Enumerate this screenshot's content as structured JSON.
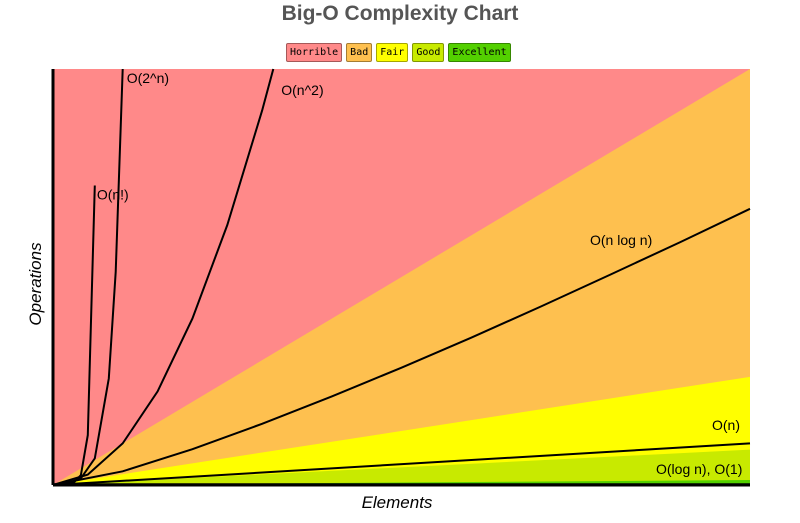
{
  "chart_data": {
    "type": "area",
    "title": "Big-O Complexity Chart",
    "xlabel": "Elements",
    "ylabel": "Operations",
    "legend_position": "top-center",
    "legend": [
      {
        "label": "Horrible",
        "color": "#ff8989"
      },
      {
        "label": "Bad",
        "color": "#fec04f"
      },
      {
        "label": "Fair",
        "color": "#ffff00"
      },
      {
        "label": "Good",
        "color": "#c8ea00"
      },
      {
        "label": "Excellent",
        "color": "#53d000"
      }
    ],
    "xlim": [
      0,
      100
    ],
    "ylim": [
      0,
      1000
    ],
    "regions": [
      {
        "name": "Horrible",
        "color": "#ff8989",
        "upper_slope": null
      },
      {
        "name": "Bad",
        "color": "#fec04f",
        "upper_slope": 10
      },
      {
        "name": "Fair",
        "color": "#ffff00",
        "upper_slope": 2.6
      },
      {
        "name": "Good",
        "color": "#c8ea00",
        "upper_slope": 0.85
      },
      {
        "name": "Excellent",
        "color": "#53d000",
        "upper_slope": 0.12
      }
    ],
    "series": [
      {
        "name": "O(n!)",
        "label": "O(n!)",
        "points": [
          [
            0,
            0
          ],
          [
            1,
            1
          ],
          [
            2,
            2
          ],
          [
            3,
            6
          ],
          [
            4,
            24
          ],
          [
            5,
            120
          ],
          [
            6,
            720
          ]
        ]
      },
      {
        "name": "O(2^n)",
        "label": "O(2^n)",
        "points": [
          [
            0,
            1
          ],
          [
            2,
            4
          ],
          [
            4,
            16
          ],
          [
            6,
            64
          ],
          [
            8,
            256
          ],
          [
            9,
            512
          ],
          [
            10,
            1024
          ]
        ]
      },
      {
        "name": "O(n^2)",
        "label": "O(n^2)",
        "points": [
          [
            0,
            0
          ],
          [
            5,
            25
          ],
          [
            10,
            100
          ],
          [
            15,
            225
          ],
          [
            20,
            400
          ],
          [
            25,
            625
          ],
          [
            30,
            900
          ],
          [
            31.6,
            1000
          ]
        ]
      },
      {
        "name": "O(n log n)",
        "label": "O(n log n)",
        "points": [
          [
            0,
            0
          ],
          [
            10,
            33
          ],
          [
            20,
            86
          ],
          [
            30,
            147
          ],
          [
            40,
            213
          ],
          [
            50,
            282
          ],
          [
            60,
            354
          ],
          [
            70,
            429
          ],
          [
            80,
            506
          ],
          [
            90,
            584
          ],
          [
            100,
            664
          ]
        ]
      },
      {
        "name": "O(n)",
        "label": "O(n)",
        "points": [
          [
            0,
            0
          ],
          [
            100,
            100
          ]
        ]
      },
      {
        "name": "O(log n), O(1)",
        "label": "O(log n), O(1)",
        "points": [
          [
            0,
            2
          ],
          [
            100,
            2
          ]
        ]
      }
    ]
  }
}
